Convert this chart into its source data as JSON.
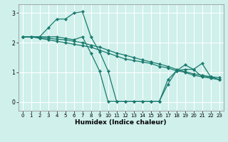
{
  "xlabel": "Humidex (Indice chaleur)",
  "xlim": [
    -0.5,
    23.5
  ],
  "ylim": [
    -0.3,
    3.3
  ],
  "yticks": [
    0,
    1,
    2,
    3
  ],
  "xticks": [
    0,
    1,
    2,
    3,
    4,
    5,
    6,
    7,
    8,
    9,
    10,
    11,
    12,
    13,
    14,
    15,
    16,
    17,
    18,
    19,
    20,
    21,
    22,
    23
  ],
  "bg_color": "#cff0eb",
  "grid_color": "#ffffff",
  "line_color": "#1a7a6e",
  "lines": [
    {
      "x": [
        0,
        1,
        2,
        3,
        4,
        5,
        6,
        7,
        8,
        9,
        10,
        11,
        12,
        13,
        14,
        15,
        16,
        17,
        18,
        19,
        20,
        21,
        22,
        23
      ],
      "y": [
        2.2,
        2.2,
        2.2,
        2.5,
        2.8,
        2.8,
        3.0,
        3.05,
        2.2,
        1.7,
        1.05,
        0.02,
        0.02,
        0.02,
        0.02,
        0.02,
        0.02,
        0.75,
        1.05,
        1.25,
        1.1,
        1.3,
        0.85,
        0.75
      ]
    },
    {
      "x": [
        0,
        1,
        2,
        3,
        4,
        5,
        6,
        7,
        8,
        9,
        10,
        11,
        12,
        13,
        14,
        15,
        16,
        17,
        18,
        19,
        20,
        21,
        22,
        23
      ],
      "y": [
        2.2,
        2.2,
        2.2,
        2.2,
        2.2,
        2.15,
        2.1,
        2.2,
        1.65,
        1.05,
        0.02,
        0.02,
        0.02,
        0.02,
        0.02,
        0.02,
        0.02,
        0.6,
        1.05,
        1.1,
        1.1,
        0.85,
        0.85,
        0.75
      ]
    },
    {
      "x": [
        0,
        1,
        2,
        3,
        4,
        5,
        6,
        7,
        8,
        9,
        10,
        11,
        12,
        13,
        14,
        15,
        16,
        17,
        18,
        19,
        20,
        21,
        22,
        23
      ],
      "y": [
        2.2,
        2.2,
        2.15,
        2.1,
        2.05,
        2.0,
        1.95,
        1.9,
        1.85,
        1.75,
        1.65,
        1.55,
        1.45,
        1.4,
        1.35,
        1.3,
        1.2,
        1.15,
        1.05,
        1.0,
        0.9,
        0.85,
        0.8,
        0.75
      ]
    },
    {
      "x": [
        0,
        1,
        2,
        3,
        4,
        5,
        6,
        7,
        8,
        9,
        10,
        11,
        12,
        13,
        14,
        15,
        16,
        17,
        18,
        19,
        20,
        21,
        22,
        23
      ],
      "y": [
        2.2,
        2.2,
        2.18,
        2.15,
        2.12,
        2.1,
        2.05,
        2.0,
        1.92,
        1.85,
        1.75,
        1.65,
        1.58,
        1.5,
        1.42,
        1.35,
        1.28,
        1.2,
        1.1,
        1.02,
        0.95,
        0.9,
        0.85,
        0.82
      ]
    }
  ]
}
